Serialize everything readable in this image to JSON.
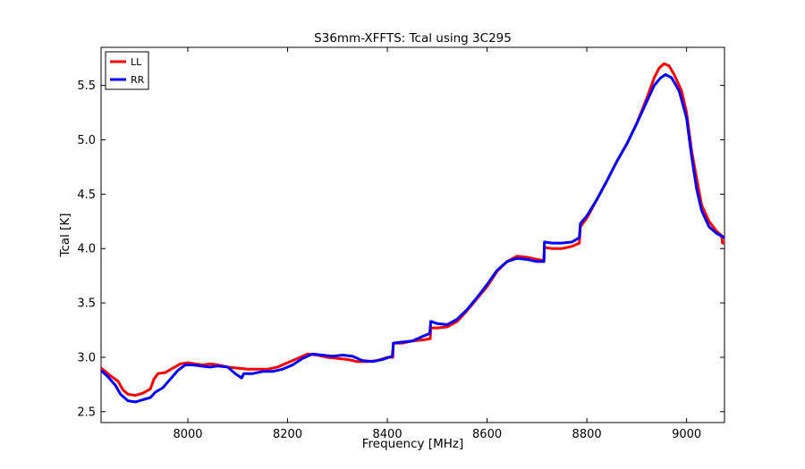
{
  "chart_data": {
    "type": "line",
    "title": "S36mm-XFFTS: Tcal using 3C295",
    "xlabel": "Frequency [MHz]",
    "ylabel": "Tcal [K]",
    "xlim": [
      7826,
      9076
    ],
    "ylim": [
      2.4,
      5.85
    ],
    "xticks": [
      8000,
      8200,
      8400,
      8600,
      8800,
      9000
    ],
    "yticks": [
      2.5,
      3.0,
      3.5,
      4.0,
      4.5,
      5.0,
      5.5
    ],
    "ytick_labels": [
      "2.5",
      "3.0",
      "3.5",
      "4.0",
      "4.5",
      "5.0",
      "5.5"
    ],
    "grid": false,
    "legend_position": "top-left",
    "series": [
      {
        "name": "LL",
        "color": "#ff0000",
        "points": [
          [
            7826,
            2.9
          ],
          [
            7845,
            2.83
          ],
          [
            7860,
            2.78
          ],
          [
            7870,
            2.7
          ],
          [
            7880,
            2.66
          ],
          [
            7895,
            2.65
          ],
          [
            7910,
            2.67
          ],
          [
            7925,
            2.71
          ],
          [
            7932,
            2.8
          ],
          [
            7940,
            2.85
          ],
          [
            7955,
            2.86
          ],
          [
            7970,
            2.9
          ],
          [
            7985,
            2.94
          ],
          [
            8000,
            2.95
          ],
          [
            8015,
            2.94
          ],
          [
            8030,
            2.93
          ],
          [
            8045,
            2.94
          ],
          [
            8060,
            2.93
          ],
          [
            8080,
            2.91
          ],
          [
            8100,
            2.9
          ],
          [
            8120,
            2.89
          ],
          [
            8140,
            2.89
          ],
          [
            8160,
            2.89
          ],
          [
            8180,
            2.91
          ],
          [
            8200,
            2.95
          ],
          [
            8220,
            2.99
          ],
          [
            8240,
            3.03
          ],
          [
            8260,
            3.02
          ],
          [
            8280,
            3.0
          ],
          [
            8300,
            2.99
          ],
          [
            8320,
            2.98
          ],
          [
            8340,
            2.96
          ],
          [
            8360,
            2.96
          ],
          [
            8380,
            2.97
          ],
          [
            8400,
            3.0
          ],
          [
            8411,
            3.0
          ],
          [
            8412,
            3.13
          ],
          [
            8430,
            3.13
          ],
          [
            8450,
            3.15
          ],
          [
            8470,
            3.16
          ],
          [
            8486,
            3.17
          ],
          [
            8487,
            3.27
          ],
          [
            8500,
            3.27
          ],
          [
            8520,
            3.28
          ],
          [
            8540,
            3.33
          ],
          [
            8560,
            3.43
          ],
          [
            8580,
            3.54
          ],
          [
            8600,
            3.65
          ],
          [
            8620,
            3.79
          ],
          [
            8640,
            3.88
          ],
          [
            8660,
            3.93
          ],
          [
            8680,
            3.92
          ],
          [
            8700,
            3.9
          ],
          [
            8714,
            3.89
          ],
          [
            8715,
            4.01
          ],
          [
            8730,
            4.0
          ],
          [
            8750,
            4.0
          ],
          [
            8770,
            4.02
          ],
          [
            8785,
            4.05
          ],
          [
            8787,
            4.2
          ],
          [
            8800,
            4.28
          ],
          [
            8820,
            4.45
          ],
          [
            8840,
            4.62
          ],
          [
            8860,
            4.8
          ],
          [
            8880,
            4.96
          ],
          [
            8900,
            5.15
          ],
          [
            8920,
            5.38
          ],
          [
            8935,
            5.57
          ],
          [
            8945,
            5.66
          ],
          [
            8955,
            5.7
          ],
          [
            8965,
            5.68
          ],
          [
            8975,
            5.6
          ],
          [
            8990,
            5.45
          ],
          [
            9000,
            5.25
          ],
          [
            9010,
            4.9
          ],
          [
            9020,
            4.65
          ],
          [
            9030,
            4.4
          ],
          [
            9045,
            4.25
          ],
          [
            9060,
            4.16
          ],
          [
            9070,
            4.12
          ],
          [
            9072,
            4.05
          ],
          [
            9076,
            4.05
          ]
        ]
      },
      {
        "name": "RR",
        "color": "#0000ff",
        "points": [
          [
            7826,
            2.88
          ],
          [
            7840,
            2.82
          ],
          [
            7855,
            2.74
          ],
          [
            7865,
            2.66
          ],
          [
            7880,
            2.6
          ],
          [
            7895,
            2.59
          ],
          [
            7910,
            2.61
          ],
          [
            7925,
            2.63
          ],
          [
            7935,
            2.68
          ],
          [
            7950,
            2.72
          ],
          [
            7965,
            2.8
          ],
          [
            7980,
            2.88
          ],
          [
            7995,
            2.93
          ],
          [
            8010,
            2.93
          ],
          [
            8025,
            2.92
          ],
          [
            8045,
            2.91
          ],
          [
            8060,
            2.92
          ],
          [
            8080,
            2.91
          ],
          [
            8095,
            2.85
          ],
          [
            8108,
            2.81
          ],
          [
            8112,
            2.85
          ],
          [
            8130,
            2.85
          ],
          [
            8150,
            2.87
          ],
          [
            8170,
            2.87
          ],
          [
            8190,
            2.89
          ],
          [
            8210,
            2.93
          ],
          [
            8230,
            2.99
          ],
          [
            8250,
            3.03
          ],
          [
            8270,
            3.02
          ],
          [
            8290,
            3.01
          ],
          [
            8310,
            3.02
          ],
          [
            8330,
            3.01
          ],
          [
            8350,
            2.97
          ],
          [
            8370,
            2.96
          ],
          [
            8390,
            2.98
          ],
          [
            8410,
            3.01
          ],
          [
            8412,
            3.13
          ],
          [
            8430,
            3.14
          ],
          [
            8450,
            3.15
          ],
          [
            8470,
            3.19
          ],
          [
            8485,
            3.22
          ],
          [
            8487,
            3.33
          ],
          [
            8500,
            3.31
          ],
          [
            8520,
            3.3
          ],
          [
            8540,
            3.35
          ],
          [
            8560,
            3.44
          ],
          [
            8580,
            3.55
          ],
          [
            8600,
            3.67
          ],
          [
            8620,
            3.8
          ],
          [
            8640,
            3.88
          ],
          [
            8660,
            3.91
          ],
          [
            8680,
            3.9
          ],
          [
            8700,
            3.88
          ],
          [
            8714,
            3.88
          ],
          [
            8715,
            4.06
          ],
          [
            8730,
            4.05
          ],
          [
            8750,
            4.05
          ],
          [
            8770,
            4.06
          ],
          [
            8785,
            4.1
          ],
          [
            8787,
            4.23
          ],
          [
            8800,
            4.3
          ],
          [
            8820,
            4.45
          ],
          [
            8840,
            4.62
          ],
          [
            8860,
            4.8
          ],
          [
            8880,
            4.96
          ],
          [
            8900,
            5.15
          ],
          [
            8920,
            5.35
          ],
          [
            8935,
            5.5
          ],
          [
            8948,
            5.57
          ],
          [
            8958,
            5.6
          ],
          [
            8970,
            5.57
          ],
          [
            8985,
            5.45
          ],
          [
            9000,
            5.2
          ],
          [
            9010,
            4.85
          ],
          [
            9020,
            4.55
          ],
          [
            9030,
            4.35
          ],
          [
            9045,
            4.2
          ],
          [
            9060,
            4.14
          ],
          [
            9076,
            4.1
          ]
        ]
      }
    ]
  }
}
